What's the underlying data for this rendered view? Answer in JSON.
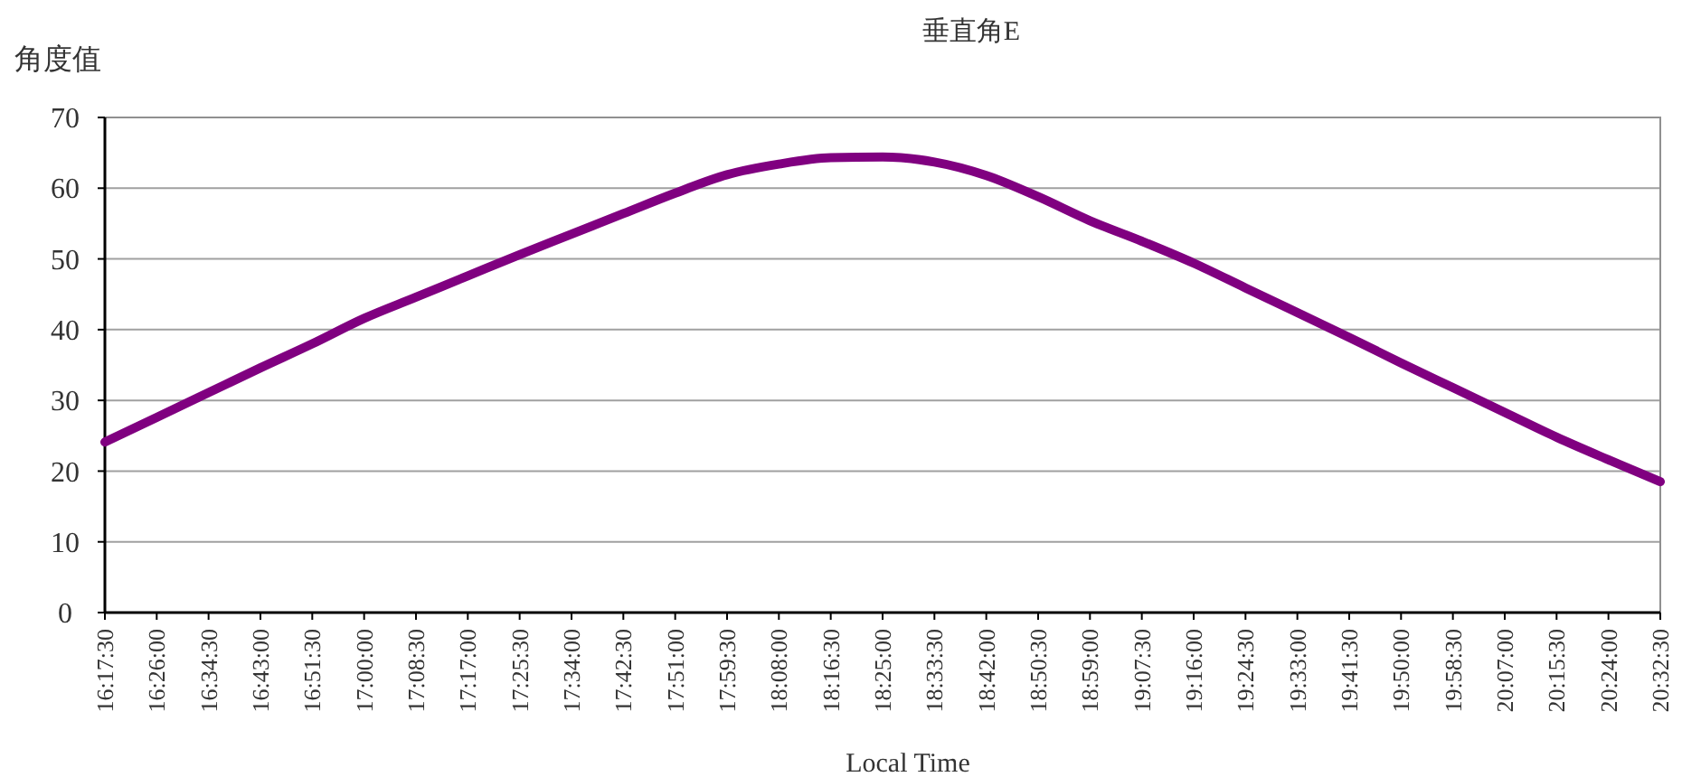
{
  "chart_data": {
    "type": "line",
    "title": "垂直角E",
    "xlabel": "Local Time",
    "ylabel": "角度值",
    "x": [
      16.2917,
      16.4333,
      16.575,
      16.7167,
      16.8583,
      17.0,
      17.1417,
      17.2833,
      17.425,
      17.5667,
      17.7083,
      17.85,
      17.9917,
      18.1333,
      18.275,
      18.4167,
      18.5583,
      18.7,
      18.8417,
      18.9833,
      19.125,
      19.2667,
      19.4083,
      19.55,
      19.6917,
      19.8333,
      19.975,
      20.1167,
      20.2583,
      20.4,
      20.5417
    ],
    "series": [
      {
        "color": "#800080",
        "values": [
          24.1,
          27.6,
          31.1,
          34.6,
          38.0,
          41.6,
          44.6,
          47.6,
          50.6,
          53.5,
          56.4,
          59.3,
          61.9,
          63.4,
          64.3,
          64.4,
          63.7,
          61.8,
          58.8,
          55.4,
          52.5,
          49.4,
          45.9,
          42.4,
          38.9,
          35.3,
          31.8,
          28.3,
          24.8,
          21.6,
          18.5
        ]
      }
    ],
    "xlim": [
      16.2917,
      20.5417
    ],
    "ylim": [
      0,
      70
    ],
    "yticks": [
      0,
      10,
      20,
      30,
      40,
      50,
      60,
      70
    ],
    "xticks": [
      {
        "value": 16.2917,
        "label": "16:17:30"
      },
      {
        "value": 16.4333,
        "label": "16:26:00"
      },
      {
        "value": 16.575,
        "label": "16:34:30"
      },
      {
        "value": 16.7167,
        "label": "16:43:00"
      },
      {
        "value": 16.8583,
        "label": "16:51:30"
      },
      {
        "value": 17.0,
        "label": "17:00:00"
      },
      {
        "value": 17.1417,
        "label": "17:08:30"
      },
      {
        "value": 17.2833,
        "label": "17:17:00"
      },
      {
        "value": 17.425,
        "label": "17:25:30"
      },
      {
        "value": 17.5667,
        "label": "17:34:00"
      },
      {
        "value": 17.7083,
        "label": "17:42:30"
      },
      {
        "value": 17.85,
        "label": "17:51:00"
      },
      {
        "value": 17.9917,
        "label": "17:59:30"
      },
      {
        "value": 18.1333,
        "label": "18:08:00"
      },
      {
        "value": 18.275,
        "label": "18:16:30"
      },
      {
        "value": 18.4167,
        "label": "18:25:00"
      },
      {
        "value": 18.5583,
        "label": "18:33:30"
      },
      {
        "value": 18.7,
        "label": "18:42:00"
      },
      {
        "value": 18.8417,
        "label": "18:50:30"
      },
      {
        "value": 18.9833,
        "label": "18:59:00"
      },
      {
        "value": 19.125,
        "label": "19:07:30"
      },
      {
        "value": 19.2667,
        "label": "19:16:00"
      },
      {
        "value": 19.4083,
        "label": "19:24:30"
      },
      {
        "value": 19.55,
        "label": "19:33:00"
      },
      {
        "value": 19.6917,
        "label": "19:41:30"
      },
      {
        "value": 19.8333,
        "label": "19:50:00"
      },
      {
        "value": 19.975,
        "label": "19:58:30"
      },
      {
        "value": 20.1167,
        "label": "20:07:00"
      },
      {
        "value": 20.2583,
        "label": "20:15:30"
      },
      {
        "value": 20.4,
        "label": "20:24:00"
      },
      {
        "value": 20.5417,
        "label": "20:32:30"
      }
    ],
    "grid": "y",
    "marker": "none",
    "line_style": "solid"
  }
}
